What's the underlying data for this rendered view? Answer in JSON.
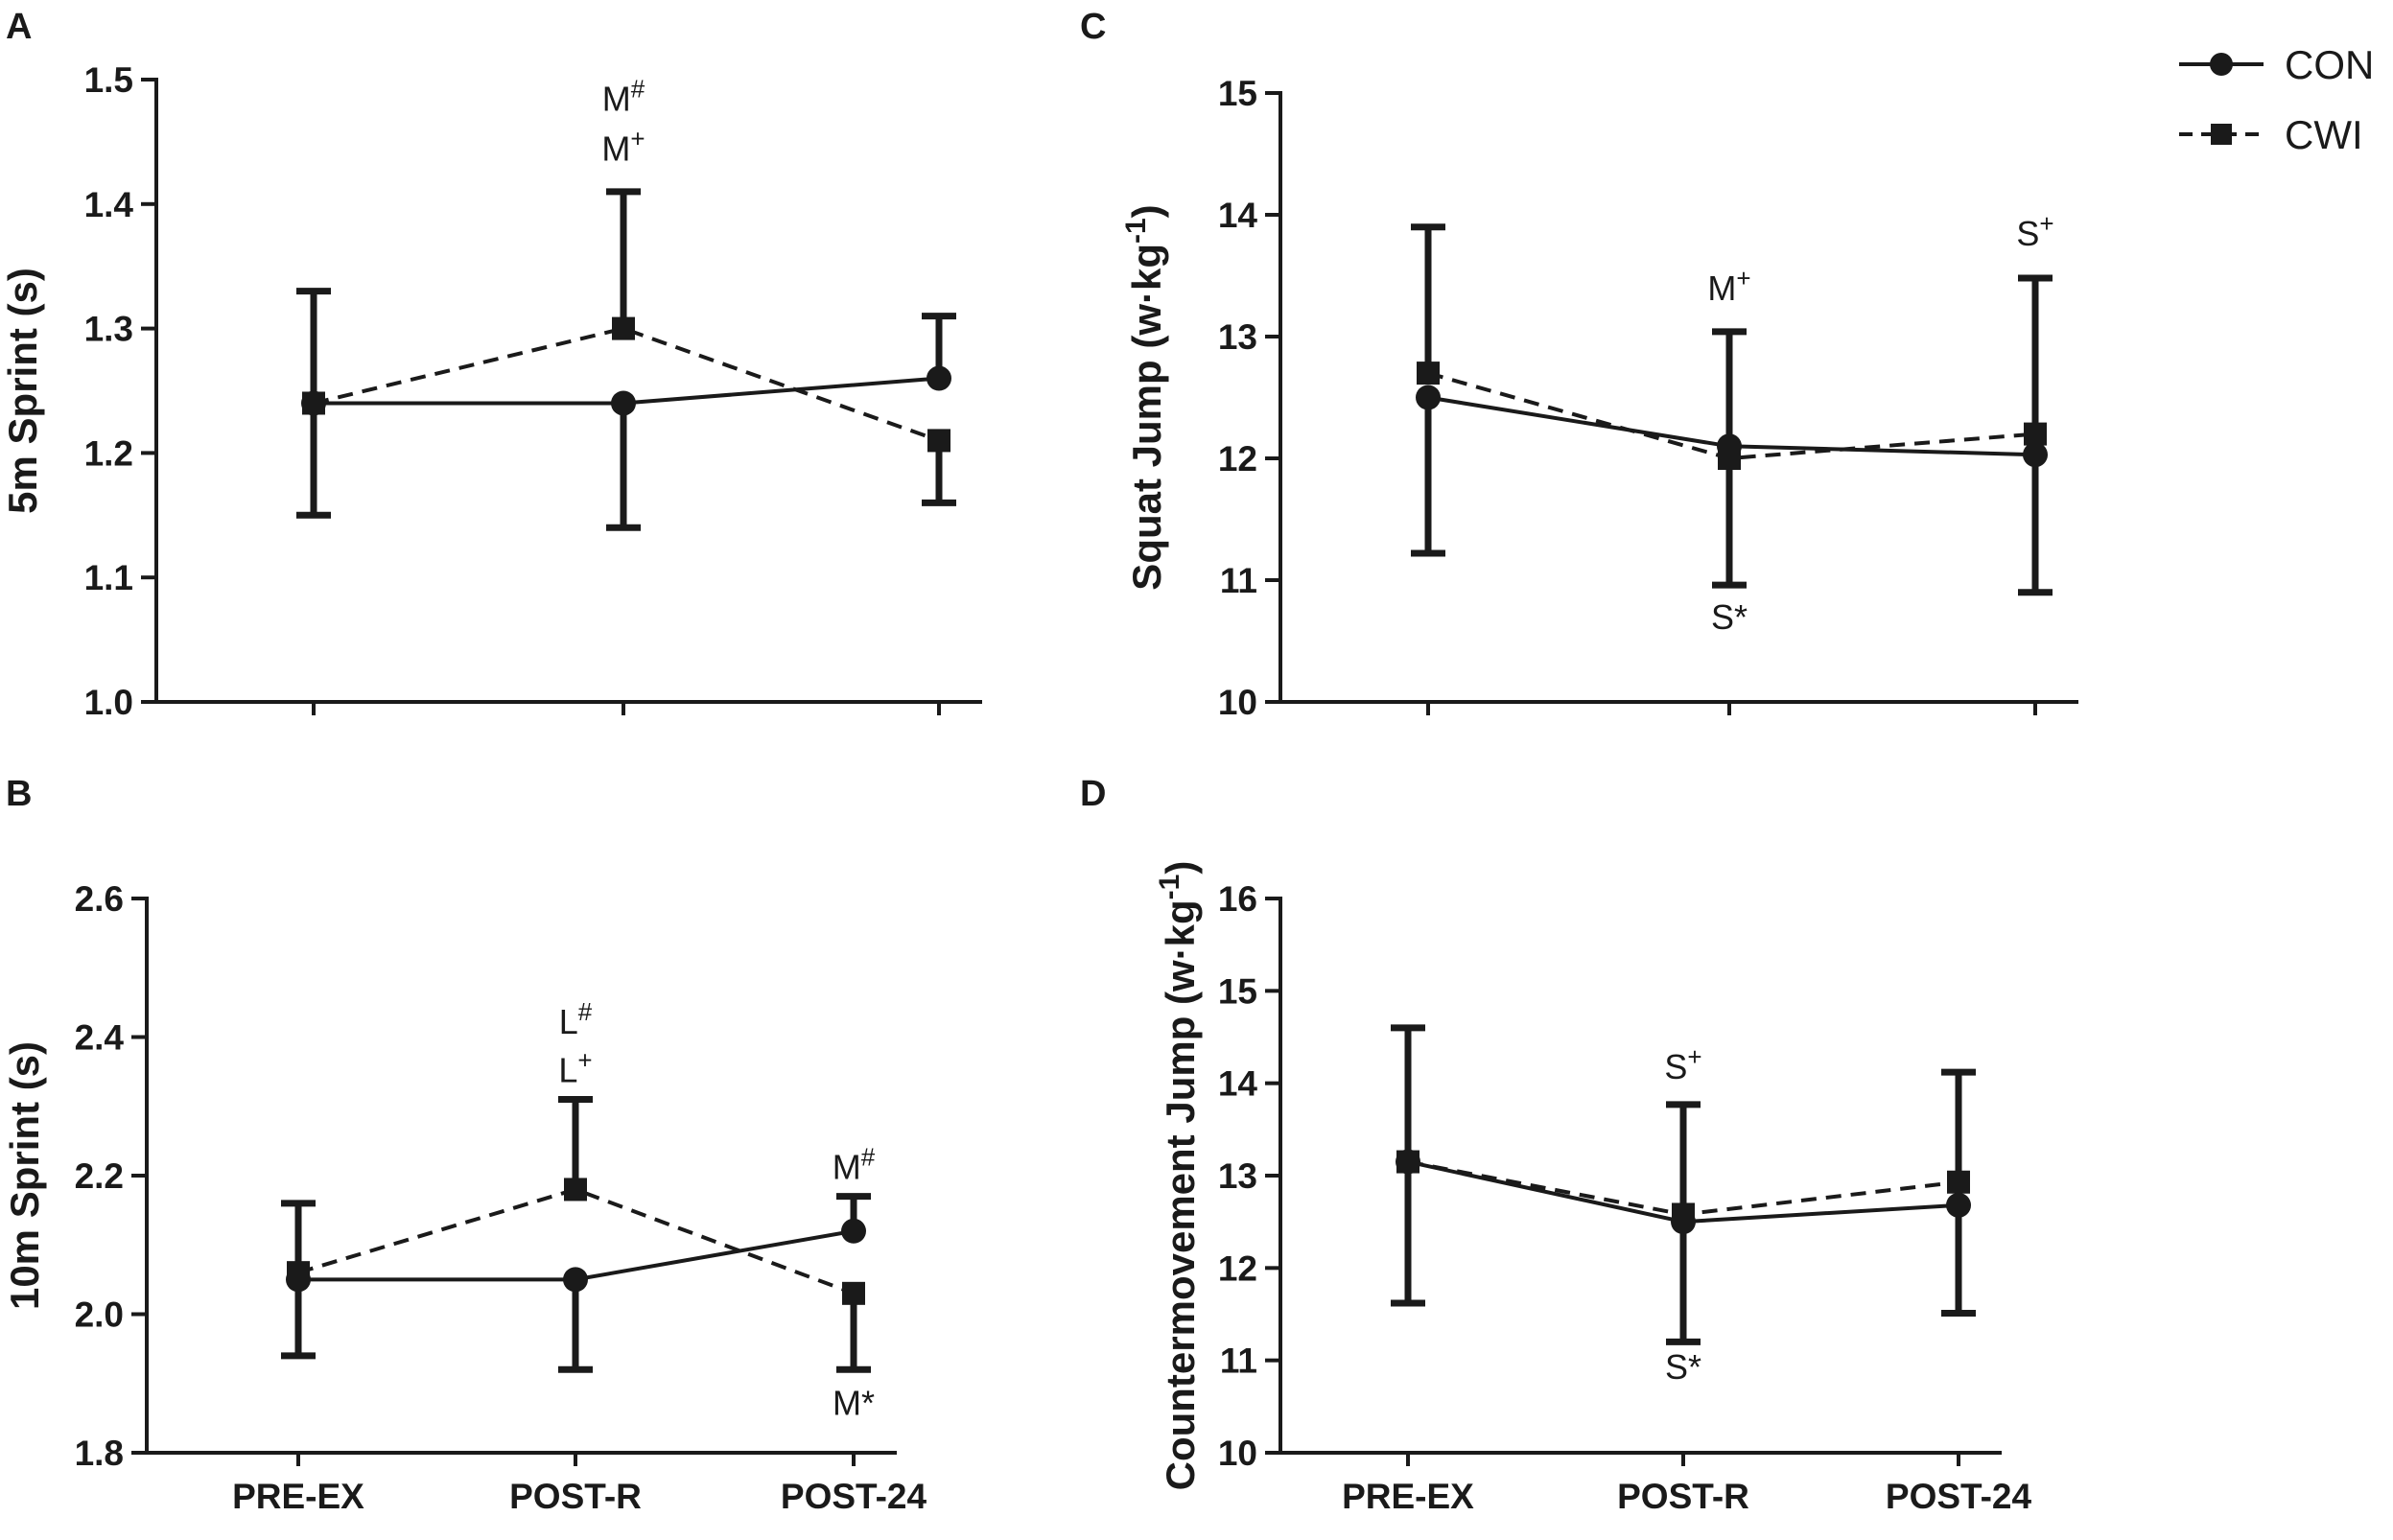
{
  "chart_data": [
    {
      "panel": "A",
      "type": "line",
      "ylabel": "5m Sprint (s)",
      "ylim": [
        1.0,
        1.5
      ],
      "yticks": [
        "1.0",
        "1.1",
        "1.2",
        "1.3",
        "1.4",
        "1.5"
      ],
      "categories": [
        "PRE-EX",
        "POST-R",
        "POST-24"
      ],
      "show_categories": false,
      "series": [
        {
          "name": "CON",
          "marker": "circle",
          "dashed": false,
          "values": [
            1.24,
            1.24,
            1.26
          ],
          "err_low": [
            1.24,
            1.14,
            1.26
          ],
          "err_high": [
            1.24,
            1.24,
            1.31
          ]
        },
        {
          "name": "CWI",
          "marker": "square",
          "dashed": true,
          "values": [
            1.24,
            1.3,
            1.21
          ],
          "err_low": [
            1.15,
            1.3,
            1.16
          ],
          "err_high": [
            1.33,
            1.41,
            1.21
          ]
        }
      ],
      "annotations": [
        {
          "category": "POST-R",
          "value": 1.475,
          "text": "M",
          "sup": "#"
        },
        {
          "category": "POST-R",
          "value": 1.435,
          "text": "M",
          "sup": "+"
        }
      ]
    },
    {
      "panel": "B",
      "type": "line",
      "ylabel": "10m Sprint (s)",
      "ylim": [
        1.8,
        2.6
      ],
      "yticks": [
        "1.8",
        "2.0",
        "2.2",
        "2.4",
        "2.6"
      ],
      "categories": [
        "PRE-EX",
        "POST-R",
        "POST-24"
      ],
      "show_categories": true,
      "series": [
        {
          "name": "CON",
          "marker": "circle",
          "dashed": false,
          "values": [
            2.05,
            2.05,
            2.12
          ],
          "err_low": [
            1.94,
            1.92,
            2.12
          ],
          "err_high": [
            2.05,
            2.05,
            2.17
          ]
        },
        {
          "name": "CWI",
          "marker": "square",
          "dashed": true,
          "values": [
            2.06,
            2.18,
            2.03
          ],
          "err_low": [
            2.06,
            2.18,
            1.92
          ],
          "err_high": [
            2.16,
            2.31,
            2.03
          ]
        }
      ],
      "annotations": [
        {
          "category": "POST-R",
          "value": 2.405,
          "text": "L",
          "sup": "#"
        },
        {
          "category": "POST-R",
          "value": 2.335,
          "text": "L",
          "sup": "+"
        },
        {
          "category": "POST-24",
          "value": 2.195,
          "text": "M",
          "sup": "#"
        },
        {
          "category": "POST-24",
          "value": 1.855,
          "text": "M*",
          "sup": ""
        }
      ]
    },
    {
      "panel": "C",
      "type": "line",
      "ylabel": "Squat Jump (w·kg",
      "ylabel_sup": "-1",
      "ylabel_close": ")",
      "ylim": [
        10,
        15
      ],
      "yticks": [
        "10",
        "11",
        "12",
        "13",
        "14",
        "15"
      ],
      "categories": [
        "PRE-EX",
        "POST-R",
        "POST-24"
      ],
      "show_categories": false,
      "series": [
        {
          "name": "CON",
          "marker": "circle",
          "dashed": false,
          "values": [
            12.5,
            12.1,
            12.03
          ],
          "err_low": [
            11.22,
            10.96,
            10.9
          ],
          "err_high": [
            12.5,
            12.1,
            12.03
          ]
        },
        {
          "name": "CWI",
          "marker": "square",
          "dashed": true,
          "values": [
            12.7,
            12.0,
            12.2
          ],
          "err_low": [
            12.7,
            12.0,
            12.2
          ],
          "err_high": [
            13.9,
            13.04,
            13.48
          ]
        }
      ],
      "annotations": [
        {
          "category": "POST-R",
          "value": 13.3,
          "text": "M",
          "sup": "+"
        },
        {
          "category": "POST-R",
          "value": 10.6,
          "text": "S*",
          "sup": ""
        },
        {
          "category": "POST-24",
          "value": 13.75,
          "text": "S",
          "sup": "+"
        }
      ]
    },
    {
      "panel": "D",
      "type": "line",
      "ylabel": "Countermovement Jump (w·kg",
      "ylabel_sup": "-1",
      "ylabel_close": ")",
      "ylim": [
        10,
        16
      ],
      "yticks": [
        "10",
        "11",
        "12",
        "13",
        "14",
        "15",
        "16"
      ],
      "categories": [
        "PRE-EX",
        "POST-R",
        "POST-24"
      ],
      "show_categories": true,
      "series": [
        {
          "name": "CON",
          "marker": "circle",
          "dashed": false,
          "values": [
            13.15,
            12.5,
            12.68
          ],
          "err_low": [
            11.62,
            11.2,
            11.51
          ],
          "err_high": [
            13.15,
            12.5,
            12.68
          ]
        },
        {
          "name": "CWI",
          "marker": "square",
          "dashed": true,
          "values": [
            13.15,
            12.58,
            12.93
          ],
          "err_low": [
            13.15,
            12.58,
            12.93
          ],
          "err_high": [
            14.6,
            13.77,
            14.12
          ]
        }
      ],
      "annotations": [
        {
          "category": "POST-R",
          "value": 14.05,
          "text": "S",
          "sup": "+"
        },
        {
          "category": "POST-R",
          "value": 10.8,
          "text": "S*",
          "sup": ""
        }
      ]
    }
  ],
  "legend": {
    "placement": "top-right",
    "items": [
      {
        "label": "CON",
        "marker": "circle",
        "dashed": false
      },
      {
        "label": "CWI",
        "marker": "square",
        "dashed": true
      }
    ]
  }
}
